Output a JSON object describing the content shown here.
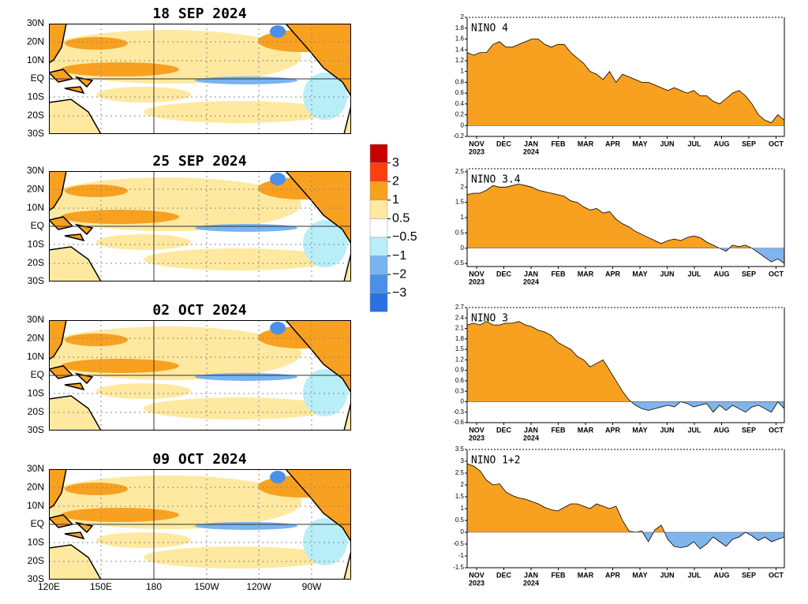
{
  "maps": {
    "titles": [
      "18 SEP 2024",
      "25 SEP 2024",
      "02 OCT 2024",
      "09 OCT 2024"
    ],
    "lat_labels": [
      "30N",
      "20N",
      "10N",
      "EQ",
      "10S",
      "20S",
      "30S"
    ],
    "lon_labels": [
      "120E",
      "150E",
      "180",
      "150W",
      "120W",
      "90W"
    ]
  },
  "colorbar": {
    "colors": [
      "#c80000",
      "#f84010",
      "#f8a020",
      "#ffe9a0",
      "#ffffff",
      "#b8eef8",
      "#7ab4f0",
      "#4a90e8",
      "#2a70e0"
    ],
    "ticks": [
      3,
      2,
      1,
      0.5,
      {
        "value": -0.5,
        "label": "−0.5"
      },
      {
        "value": -1,
        "label": "−1"
      },
      {
        "value": -2,
        "label": "−2"
      },
      {
        "value": -3,
        "label": "−3"
      }
    ]
  },
  "months": [
    "NOV",
    "DEC",
    "JAN",
    "FEB",
    "MAR",
    "APR",
    "MAY",
    "JUN",
    "JUL",
    "AUG",
    "SEP",
    "OCT"
  ],
  "years": [
    "2023",
    "2024"
  ],
  "chart_data": [
    {
      "type": "area",
      "title": "NINO 4",
      "positive_color": "#f8a020",
      "negative_color": "#80b4ec",
      "ylim": [
        -0.2,
        2
      ],
      "yticks": [
        -0.2,
        0,
        0.2,
        0.4,
        0.6,
        0.8,
        1,
        1.2,
        1.4,
        1.6,
        1.8,
        2
      ],
      "values": [
        1.35,
        1.3,
        1.35,
        1.35,
        1.5,
        1.55,
        1.45,
        1.45,
        1.5,
        1.55,
        1.6,
        1.6,
        1.5,
        1.45,
        1.5,
        1.5,
        1.35,
        1.25,
        1.15,
        1.0,
        0.95,
        0.85,
        1.0,
        0.8,
        0.95,
        0.9,
        0.85,
        0.8,
        0.8,
        0.75,
        0.7,
        0.65,
        0.7,
        0.65,
        0.6,
        0.65,
        0.55,
        0.55,
        0.45,
        0.4,
        0.5,
        0.6,
        0.65,
        0.55,
        0.4,
        0.2,
        0.1,
        0.05,
        0.2,
        0.1
      ]
    },
    {
      "type": "area",
      "title": "NINO 3.4",
      "positive_color": "#f8a020",
      "negative_color": "#80b4ec",
      "ylim": [
        -0.6,
        2.6
      ],
      "yticks": [
        -0.5,
        0,
        0.5,
        1,
        1.5,
        2,
        2.5
      ],
      "values": [
        1.75,
        1.8,
        1.8,
        1.9,
        2.05,
        2.0,
        2.0,
        2.05,
        2.1,
        2.05,
        2.0,
        1.9,
        1.85,
        1.8,
        1.75,
        1.7,
        1.55,
        1.5,
        1.35,
        1.25,
        1.3,
        1.15,
        1.2,
        0.95,
        0.8,
        0.7,
        0.55,
        0.45,
        0.35,
        0.25,
        0.15,
        0.25,
        0.3,
        0.25,
        0.35,
        0.4,
        0.35,
        0.2,
        0.1,
        0.0,
        -0.1,
        0.1,
        0.05,
        0.1,
        0.0,
        -0.15,
        -0.3,
        -0.45,
        -0.35,
        -0.5
      ]
    },
    {
      "type": "area",
      "title": "NINO 3",
      "positive_color": "#f8a020",
      "negative_color": "#80b4ec",
      "ylim": [
        -0.6,
        2.7
      ],
      "yticks": [
        -0.6,
        -0.3,
        0,
        0.3,
        0.6,
        0.9,
        1.2,
        1.5,
        1.8,
        2.1,
        2.4,
        2.7
      ],
      "values": [
        2.2,
        2.25,
        2.2,
        2.3,
        2.2,
        2.2,
        2.25,
        2.25,
        2.3,
        2.2,
        2.15,
        2.05,
        2.0,
        1.9,
        1.7,
        1.6,
        1.5,
        1.3,
        1.2,
        1.0,
        1.1,
        1.2,
        0.9,
        0.6,
        0.3,
        0.05,
        -0.1,
        -0.2,
        -0.25,
        -0.2,
        -0.15,
        -0.1,
        -0.15,
        0.0,
        -0.05,
        -0.15,
        -0.1,
        -0.05,
        -0.3,
        -0.1,
        -0.25,
        -0.1,
        -0.2,
        -0.3,
        -0.15,
        -0.1,
        -0.2,
        -0.3,
        0.0,
        -0.2
      ]
    },
    {
      "type": "area",
      "title": "NINO 1+2",
      "positive_color": "#f8a020",
      "negative_color": "#80b4ec",
      "ylim": [
        -1.5,
        3.5
      ],
      "yticks": [
        -1.5,
        -1,
        -0.5,
        0,
        0.5,
        1,
        1.5,
        2,
        2.5,
        3,
        3.5
      ],
      "values": [
        2.9,
        2.8,
        2.6,
        2.2,
        2.0,
        2.05,
        1.7,
        1.55,
        1.45,
        1.4,
        1.3,
        1.2,
        1.05,
        0.95,
        0.9,
        1.05,
        1.2,
        1.2,
        1.1,
        1.0,
        1.2,
        1.1,
        1.0,
        1.1,
        0.5,
        0.05,
        0.0,
        0.05,
        -0.4,
        0.1,
        0.3,
        -0.3,
        -0.6,
        -0.65,
        -0.6,
        -0.4,
        -0.7,
        -0.5,
        -0.2,
        -0.4,
        -0.6,
        -0.3,
        -0.2,
        0.0,
        -0.15,
        -0.35,
        -0.2,
        -0.4,
        -0.3,
        -0.2
      ]
    }
  ]
}
